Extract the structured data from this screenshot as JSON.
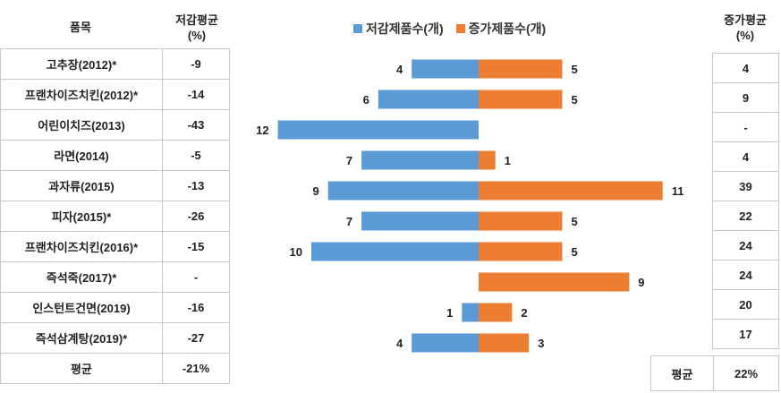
{
  "left_table": {
    "header_item": "품목",
    "header_decrease": "저감평균\n(%)",
    "rows": [
      {
        "name": "고추장(2012)*",
        "decrease": "-9"
      },
      {
        "name": "프랜차이즈치킨(2012)*",
        "decrease": "-14"
      },
      {
        "name": "어린이치즈(2013)",
        "decrease": "-43"
      },
      {
        "name": "라면(2014)",
        "decrease": "-5"
      },
      {
        "name": "과자류(2015)",
        "decrease": "-13"
      },
      {
        "name": "피자(2015)*",
        "decrease": "-26"
      },
      {
        "name": "프랜차이즈치킨(2016)*",
        "decrease": "-15"
      },
      {
        "name": "즉석죽(2017)*",
        "decrease": "-"
      },
      {
        "name": "인스턴트건면(2019)",
        "decrease": "-16"
      },
      {
        "name": "즉석삼계탕(2019)*",
        "decrease": "-27"
      }
    ],
    "avg_label": "평균",
    "avg_value": "-21%"
  },
  "right_table": {
    "header": "증가평균\n(%)",
    "values": [
      "4",
      "9",
      "-",
      "4",
      "39",
      "22",
      "24",
      "24",
      "20",
      "17"
    ],
    "avg_label": "평균",
    "avg_value": "22%"
  },
  "chart_data": {
    "type": "bar",
    "orientation": "horizontal-diverging",
    "categories": [
      "고추장(2012)*",
      "프랜차이즈치킨(2012)*",
      "어린이치즈(2013)",
      "라면(2014)",
      "과자류(2015)",
      "피자(2015)*",
      "프랜차이즈치킨(2016)*",
      "즉석죽(2017)*",
      "인스턴트건면(2019)",
      "즉석삼계탕(2019)*"
    ],
    "series": [
      {
        "name": "저감제품수(개)",
        "color": "#5B9BD5",
        "direction": "left",
        "values": [
          4,
          6,
          12,
          7,
          9,
          7,
          10,
          null,
          1,
          4
        ]
      },
      {
        "name": "증가제품수(개)",
        "color": "#ED7D31",
        "direction": "right",
        "values": [
          5,
          5,
          null,
          1,
          11,
          5,
          5,
          9,
          2,
          3
        ]
      }
    ],
    "legend_position": "top"
  }
}
